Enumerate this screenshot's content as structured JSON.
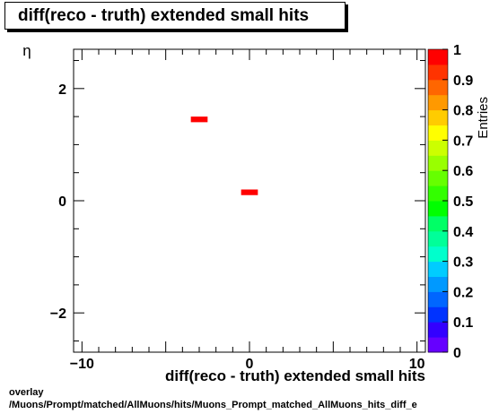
{
  "chart_data": {
    "type": "heatmap",
    "title": "diff(reco - truth) extended small hits",
    "xlabel": "diff(reco - truth) extended small hits",
    "ylabel": "η",
    "zlabel": "Entries",
    "xlim": [
      -10.5,
      10.5
    ],
    "ylim": [
      -2.7,
      2.7
    ],
    "zlim": [
      0,
      1
    ],
    "x_ticks": [
      "−10",
      "0",
      "10"
    ],
    "y_ticks": [
      "−2",
      "0",
      "2"
    ],
    "z_ticks": [
      "0",
      "0.1",
      "0.2",
      "0.3",
      "0.4",
      "0.5",
      "0.6",
      "0.7",
      "0.8",
      "0.9",
      "1"
    ],
    "bins": [
      {
        "x0": -3.5,
        "x1": -2.5,
        "y0": 1.4,
        "y1": 1.5,
        "value": 1
      },
      {
        "x0": -0.5,
        "x1": 0.5,
        "y0": 0.1,
        "y1": 0.2,
        "value": 1
      }
    ],
    "grid": false
  },
  "footer": {
    "line1": "overlay",
    "line2": "/Muons/Prompt/matched/AllMuons/hits/Muons_Prompt_matched_AllMuons_hits_diff_e"
  }
}
